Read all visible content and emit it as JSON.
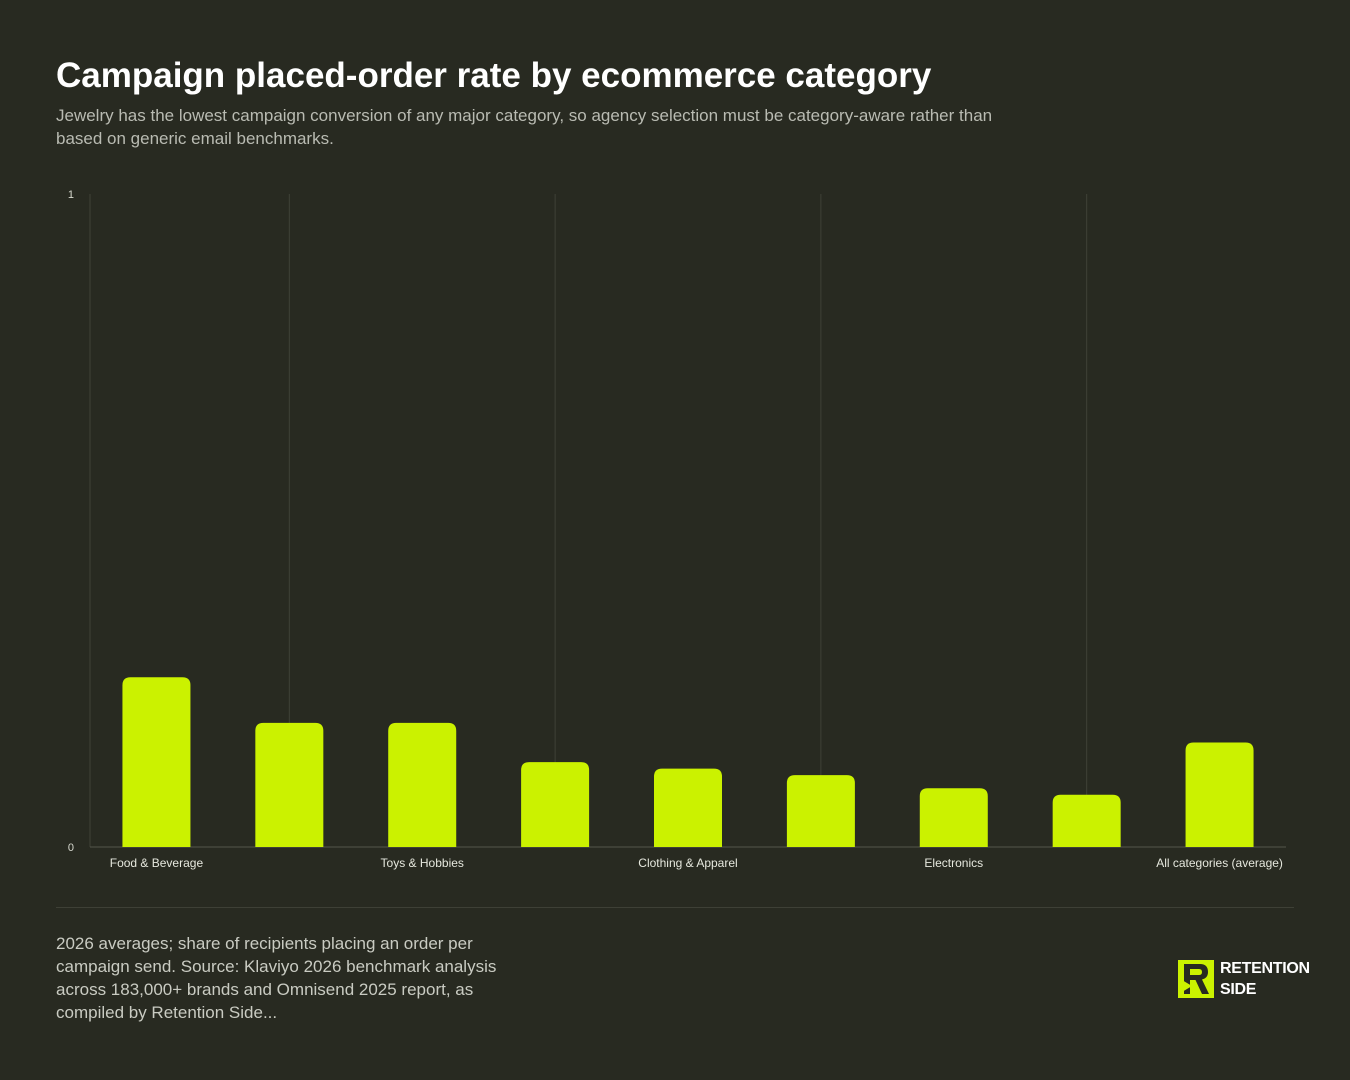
{
  "header": {
    "title": "Campaign placed-order rate by ecommerce category",
    "subtitle": "Jewelry has the lowest campaign conversion of any major category, so agency selection must be category-aware rather than based on generic email benchmarks."
  },
  "chart_data": {
    "type": "bar",
    "categories": [
      "Food & Beverage",
      "",
      "Toys & Hobbies",
      "",
      "Clothing & Apparel",
      "",
      "Electronics",
      "",
      "All categories (average)"
    ],
    "values": [
      0.26,
      0.19,
      0.19,
      0.13,
      0.12,
      0.11,
      0.09,
      0.08,
      0.16
    ],
    "ylim": [
      0,
      1
    ],
    "yticks": [
      "0",
      "1"
    ],
    "grid": "vertical",
    "legend": "none",
    "bar_color": "#cbf200"
  },
  "footer": {
    "note": "2026 averages; share of recipients placing an order per campaign send. Source: Klaviyo 2026 benchmark analysis across 183,000+ brands and Omnisend 2025 report, as compiled by Retention Side...",
    "logo_line1": "RETENTION",
    "logo_line2": "SIDE"
  },
  "colors": {
    "background": "#282a21",
    "accent": "#cbf200",
    "text": "#ffffff",
    "muted_text": "#b9bbb2"
  }
}
